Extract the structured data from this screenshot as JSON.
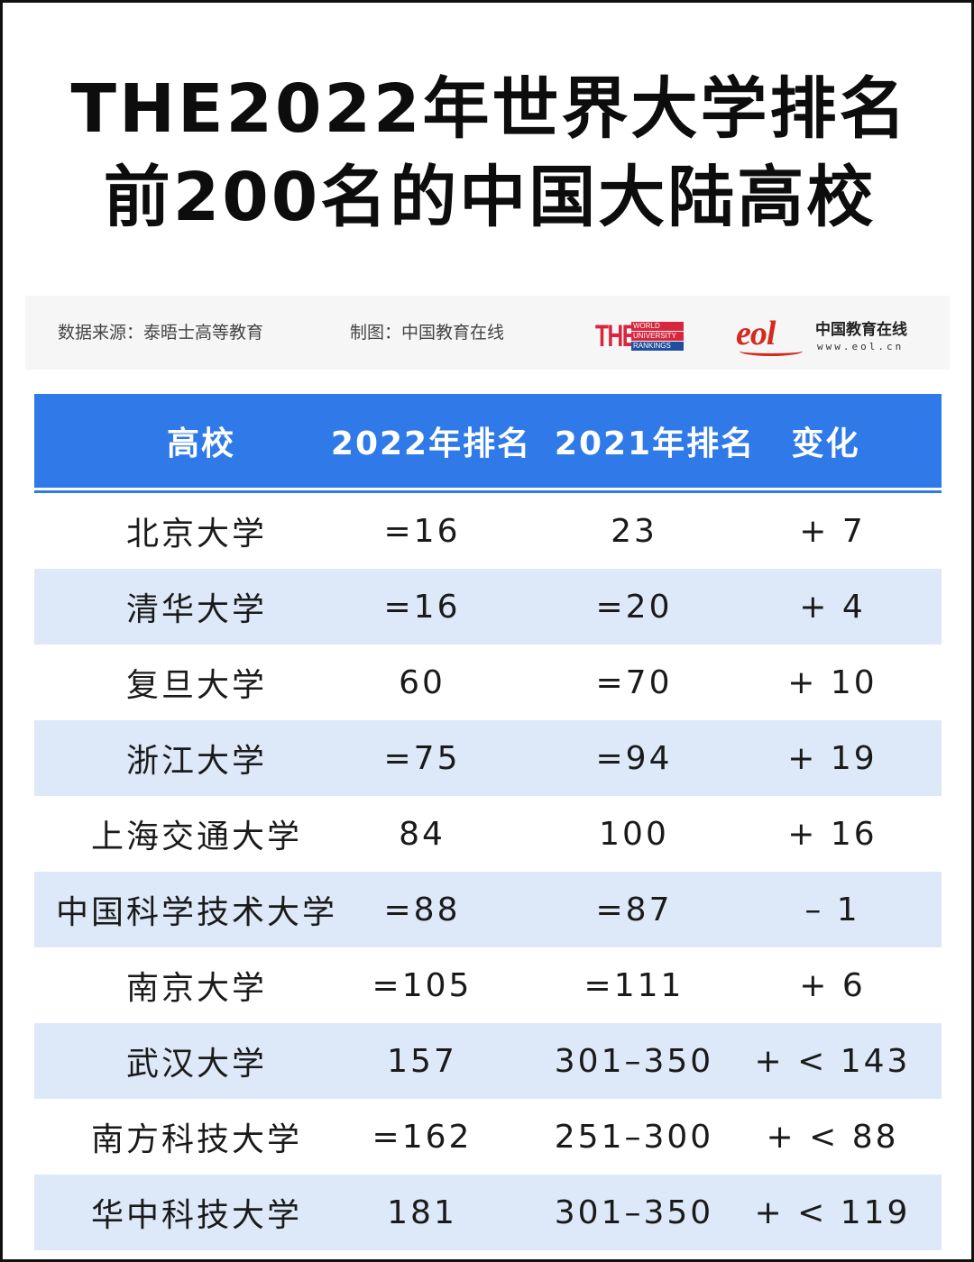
{
  "title": {
    "line1": "THE2022年世界大学排名",
    "line2": "前200名的中国大陆高校"
  },
  "source": {
    "data_source": "数据来源：泰晤士高等教育",
    "made_by": "制图：中国教育在线"
  },
  "logos": {
    "the": {
      "mark": "THE",
      "lines": [
        "WORLD",
        "UNIVERSITY",
        "RANKINGS"
      ]
    },
    "eol": {
      "mark": "eol",
      "name": "中国教育在线",
      "url": "www.eol.cn"
    }
  },
  "colors": {
    "header_bg": "#2f7ae8",
    "alt_row_bg": "#dde8f8",
    "title_text": "#0d0d0d",
    "the_red": "#d7263d",
    "eol_red": "#d42a1f"
  },
  "table": {
    "headers": [
      "高校",
      "2022年排名",
      "2021年排名",
      "变化"
    ],
    "rows": [
      [
        "北京大学",
        "=16",
        "23",
        "+ 7"
      ],
      [
        "清华大学",
        "=16",
        "=20",
        "+ 4"
      ],
      [
        "复旦大学",
        "60",
        "=70",
        "+ 10"
      ],
      [
        "浙江大学",
        "=75",
        "=94",
        "+ 19"
      ],
      [
        "上海交通大学",
        "84",
        "100",
        "+ 16"
      ],
      [
        "中国科学技术大学",
        "=88",
        "=87",
        "– 1"
      ],
      [
        "南京大学",
        "=105",
        "=111",
        "+ 6"
      ],
      [
        "武汉大学",
        "157",
        "301–350",
        "+ < 143"
      ],
      [
        "南方科技大学",
        "=162",
        "251–300",
        "+ < 88"
      ],
      [
        "华中科技大学",
        "181",
        "301–350",
        "+ < 119"
      ]
    ]
  }
}
